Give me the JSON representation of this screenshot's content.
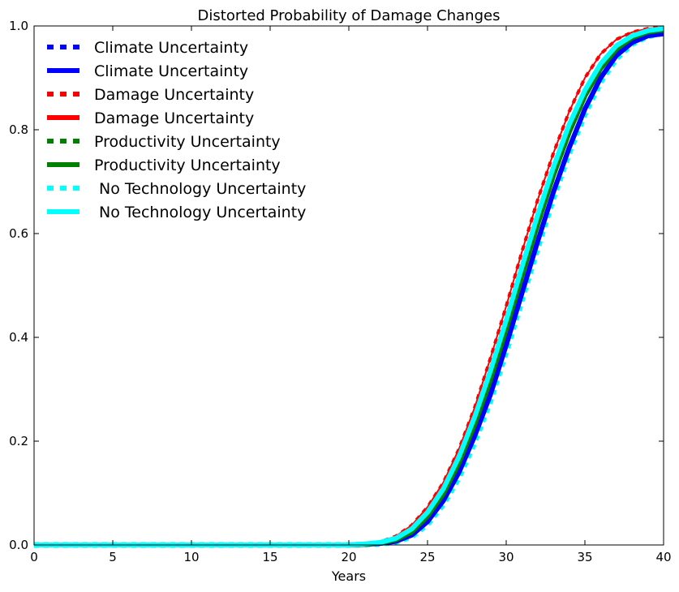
{
  "chart_data": {
    "type": "line",
    "title": "Distorted Probability of Damage Changes",
    "xlabel": "Years",
    "ylabel": "",
    "xlim": [
      0,
      40
    ],
    "ylim": [
      0,
      1.0
    ],
    "xticks": [
      "0",
      "5",
      "10",
      "15",
      "20",
      "25",
      "30",
      "35",
      "40"
    ],
    "yticks": [
      "0.0",
      "0.2",
      "0.4",
      "0.6",
      "0.8",
      "1.0"
    ],
    "grid": false,
    "legend_position": "top-left",
    "x": [
      0,
      20,
      21,
      22,
      23,
      24,
      25,
      26,
      27,
      28,
      29,
      30,
      31,
      32,
      33,
      34,
      35,
      36,
      37,
      38,
      39,
      40
    ],
    "series": [
      {
        "name": "Climate Uncertainty",
        "style": "dotted",
        "color": "#0000ff",
        "values": [
          0,
          0.0,
          0.001,
          0.003,
          0.007,
          0.019,
          0.045,
          0.085,
          0.14,
          0.21,
          0.29,
          0.385,
          0.485,
          0.585,
          0.68,
          0.765,
          0.84,
          0.9,
          0.943,
          0.968,
          0.981,
          0.985
        ]
      },
      {
        "name": "Climate Uncertainty",
        "style": "solid",
        "color": "#0000ff",
        "values": [
          0,
          0.0,
          0.001,
          0.003,
          0.007,
          0.019,
          0.045,
          0.085,
          0.14,
          0.21,
          0.29,
          0.385,
          0.485,
          0.585,
          0.68,
          0.765,
          0.84,
          0.9,
          0.943,
          0.968,
          0.981,
          0.985
        ]
      },
      {
        "name": "Damage Uncertainty",
        "style": "dotted",
        "color": "#ff0000",
        "values": [
          0,
          0.001,
          0.002,
          0.006,
          0.017,
          0.038,
          0.073,
          0.12,
          0.185,
          0.265,
          0.36,
          0.46,
          0.565,
          0.665,
          0.755,
          0.835,
          0.9,
          0.946,
          0.974,
          0.988,
          0.995,
          0.998
        ]
      },
      {
        "name": "Damage Uncertainty",
        "style": "solid",
        "color": "#ff0000",
        "values": [
          0,
          0.001,
          0.002,
          0.006,
          0.017,
          0.038,
          0.073,
          0.12,
          0.185,
          0.265,
          0.36,
          0.46,
          0.565,
          0.665,
          0.755,
          0.835,
          0.9,
          0.946,
          0.974,
          0.988,
          0.995,
          0.998
        ]
      },
      {
        "name": "Productivity Uncertainty",
        "style": "dotted",
        "color": "#008000",
        "values": [
          0,
          0.0,
          0.001,
          0.004,
          0.01,
          0.025,
          0.055,
          0.098,
          0.158,
          0.232,
          0.318,
          0.415,
          0.518,
          0.618,
          0.712,
          0.795,
          0.865,
          0.918,
          0.955,
          0.977,
          0.988,
          0.992
        ]
      },
      {
        "name": "Productivity Uncertainty",
        "style": "solid",
        "color": "#008000",
        "values": [
          0,
          0.0,
          0.001,
          0.004,
          0.01,
          0.025,
          0.055,
          0.098,
          0.158,
          0.232,
          0.318,
          0.415,
          0.518,
          0.618,
          0.712,
          0.795,
          0.865,
          0.918,
          0.955,
          0.977,
          0.988,
          0.992
        ]
      },
      {
        "name": " No Technology Uncertainty",
        "style": "dotted",
        "color": "#00ffff",
        "values": [
          0,
          0.0,
          0.001,
          0.002,
          0.006,
          0.016,
          0.04,
          0.078,
          0.13,
          0.198,
          0.278,
          0.372,
          0.472,
          0.572,
          0.668,
          0.755,
          0.83,
          0.892,
          0.937,
          0.965,
          0.98,
          0.986
        ]
      },
      {
        "name": " No Technology Uncertainty",
        "style": "solid",
        "color": "#00ffff",
        "values": [
          0,
          0.0,
          0.002,
          0.005,
          0.013,
          0.031,
          0.063,
          0.108,
          0.17,
          0.247,
          0.336,
          0.433,
          0.536,
          0.636,
          0.728,
          0.81,
          0.876,
          0.927,
          0.962,
          0.981,
          0.991,
          0.995
        ]
      }
    ]
  }
}
